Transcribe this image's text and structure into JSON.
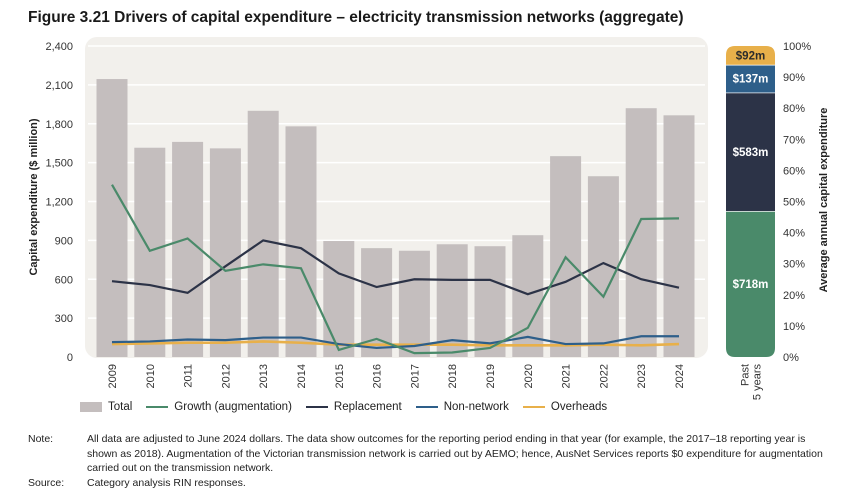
{
  "title": "Figure 3.21  Drivers of capital expenditure – electricity transmission networks (aggregate)",
  "chart_data": [
    {
      "type": "bar",
      "ylabel": "Capital expenditure ($ million)",
      "xlabel": "",
      "ylim": [
        0,
        2400
      ],
      "yticks": [
        0,
        300,
        600,
        900,
        1200,
        1500,
        1800,
        2100,
        2400
      ],
      "ytick_labels": [
        "0",
        "300",
        "600",
        "900",
        "1,200",
        "1,500",
        "1,800",
        "2,100",
        "2,400"
      ],
      "grid": true,
      "categories": [
        "2009",
        "2010",
        "2011",
        "2012",
        "2013",
        "2014",
        "2015",
        "2016",
        "2017",
        "2018",
        "2019",
        "2020",
        "2021",
        "2022",
        "2023",
        "2024"
      ],
      "bars": {
        "name": "Total",
        "color": "#c4bebe",
        "values": [
          2145,
          1615,
          1660,
          1610,
          1900,
          1780,
          895,
          840,
          820,
          870,
          855,
          940,
          1550,
          1395,
          1920,
          1865
        ]
      },
      "series": [
        {
          "name": "Growth (augmentation)",
          "color": "#4a8a6a",
          "values": [
            1330,
            820,
            915,
            665,
            715,
            685,
            55,
            140,
            30,
            35,
            70,
            225,
            770,
            465,
            1065,
            1070
          ]
        },
        {
          "name": "Replacement",
          "color": "#2c3347",
          "values": [
            585,
            555,
            495,
            700,
            900,
            840,
            645,
            540,
            600,
            595,
            595,
            485,
            580,
            725,
            600,
            535
          ]
        },
        {
          "name": "Non-network",
          "color": "#2e5f8a",
          "values": [
            115,
            120,
            135,
            130,
            150,
            150,
            100,
            70,
            85,
            130,
            105,
            155,
            100,
            105,
            160,
            160
          ]
        },
        {
          "name": "Overheads",
          "color": "#e8b04a",
          "values": [
            100,
            105,
            110,
            110,
            120,
            110,
            95,
            95,
            95,
            95,
            90,
            90,
            90,
            95,
            90,
            100
          ]
        }
      ],
      "legend_position": "bottom-left"
    },
    {
      "type": "bar",
      "stacked": true,
      "category": "Past 5 years",
      "ylabel": "Average annual capital expenditure",
      "ylim": [
        0,
        100
      ],
      "yticks": [
        0,
        10,
        20,
        30,
        40,
        50,
        60,
        70,
        80,
        90,
        100
      ],
      "ytick_labels": [
        "0%",
        "10%",
        "20%",
        "30%",
        "40%",
        "50%",
        "60%",
        "70%",
        "80%",
        "90%",
        "100%"
      ],
      "segments": [
        {
          "name": "Growth (augmentation)",
          "label": "$718m",
          "value": 718,
          "color": "#4a8a6a",
          "text_color": "#ffffff"
        },
        {
          "name": "Replacement",
          "label": "$583m",
          "value": 583,
          "color": "#2c3347",
          "text_color": "#ffffff"
        },
        {
          "name": "Non-network",
          "label": "$137m",
          "value": 137,
          "color": "#2e5f8a",
          "text_color": "#ffffff"
        },
        {
          "name": "Overheads",
          "label": "$92m",
          "value": 92,
          "color": "#e8b04a",
          "text_color": "#2b2b2b"
        }
      ]
    }
  ],
  "category_right_label": [
    "Past",
    "5 years"
  ],
  "legend": [
    {
      "label": "Total",
      "kind": "box",
      "color": "#c4bebe"
    },
    {
      "label": "Growth (augmentation)",
      "kind": "line",
      "color": "#4a8a6a"
    },
    {
      "label": "Replacement",
      "kind": "line",
      "color": "#2c3347"
    },
    {
      "label": "Non-network",
      "kind": "line",
      "color": "#2e5f8a"
    },
    {
      "label": "Overheads",
      "kind": "line",
      "color": "#e8b04a"
    }
  ],
  "notes": {
    "note_label": "Note:",
    "note_text": "All data are adjusted to June 2024 dollars. The data show outcomes for the reporting period ending in that year (for example, the 2017–18 reporting year is shown as 2018). Augmentation of the Victorian transmission network is carried out by AEMO; hence, AusNet Services reports $0 expenditure for augmentation carried out on the transmission network.",
    "source_label": "Source:",
    "source_text": "Category analysis RIN responses."
  }
}
